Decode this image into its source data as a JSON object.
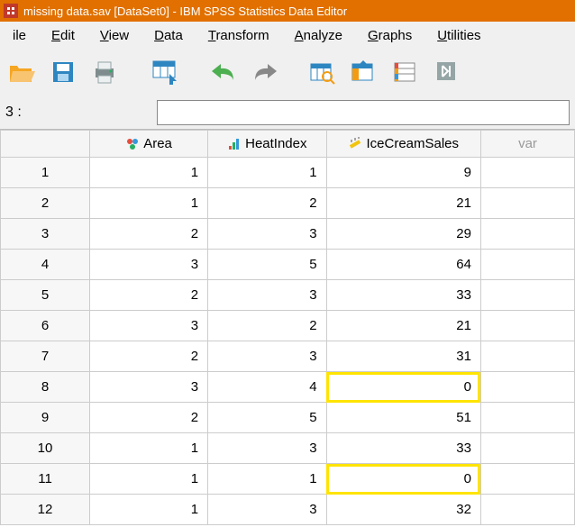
{
  "title": "missing data.sav [DataSet0] - IBM SPSS Statistics Data Editor",
  "menu": [
    "ile",
    "Edit",
    "View",
    "Data",
    "Transform",
    "Analyze",
    "Graphs",
    "Utilities"
  ],
  "menu_ul": [
    0,
    0,
    0,
    0,
    0,
    0,
    0,
    0
  ],
  "goto_label": "3 :",
  "columns": [
    "Area",
    "HeatIndex",
    "IceCreamSales"
  ],
  "empty_col": "var",
  "rows": [
    {
      "n": 1,
      "v": [
        1,
        1,
        9
      ],
      "hl": [
        false,
        false,
        false
      ]
    },
    {
      "n": 2,
      "v": [
        1,
        2,
        21
      ],
      "hl": [
        false,
        false,
        false
      ]
    },
    {
      "n": 3,
      "v": [
        2,
        3,
        29
      ],
      "hl": [
        false,
        false,
        false
      ]
    },
    {
      "n": 4,
      "v": [
        3,
        5,
        64
      ],
      "hl": [
        false,
        false,
        false
      ]
    },
    {
      "n": 5,
      "v": [
        2,
        3,
        33
      ],
      "hl": [
        false,
        false,
        false
      ]
    },
    {
      "n": 6,
      "v": [
        3,
        2,
        21
      ],
      "hl": [
        false,
        false,
        false
      ]
    },
    {
      "n": 7,
      "v": [
        2,
        3,
        31
      ],
      "hl": [
        false,
        false,
        false
      ]
    },
    {
      "n": 8,
      "v": [
        3,
        4,
        0
      ],
      "hl": [
        false,
        false,
        true
      ]
    },
    {
      "n": 9,
      "v": [
        2,
        5,
        51
      ],
      "hl": [
        false,
        false,
        false
      ]
    },
    {
      "n": 10,
      "v": [
        1,
        3,
        33
      ],
      "hl": [
        false,
        false,
        false
      ]
    },
    {
      "n": 11,
      "v": [
        1,
        1,
        0
      ],
      "hl": [
        false,
        false,
        true
      ]
    },
    {
      "n": 12,
      "v": [
        1,
        3,
        32
      ],
      "hl": [
        false,
        false,
        false
      ]
    }
  ],
  "colors": {
    "titlebar": "#e17000",
    "highlight": "#ffe400",
    "grid_border": "#cccccc"
  }
}
